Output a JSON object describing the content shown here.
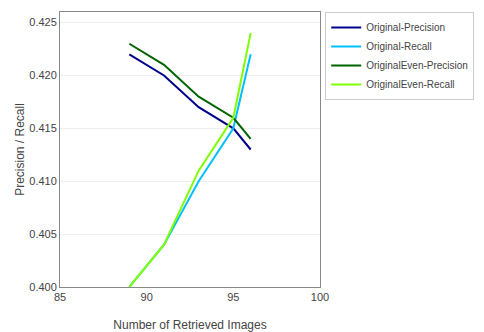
{
  "chart_data": {
    "type": "line",
    "xlabel": "Number of Retrieved Images",
    "ylabel": "Precision / Recall",
    "series": [
      {
        "name": "Original-Precision",
        "color": "#00008B",
        "x": [
          89,
          91,
          93,
          95,
          96
        ],
        "values": [
          0.422,
          0.42,
          0.417,
          0.415,
          0.413
        ]
      },
      {
        "name": "Original-Recall",
        "color": "#00BFFF",
        "x": [
          89,
          91,
          93,
          95,
          96
        ],
        "values": [
          0.4,
          0.404,
          0.41,
          0.415,
          0.422
        ]
      },
      {
        "name": "OriginalEven-Precision",
        "color": "#006400",
        "x": [
          89,
          91,
          93,
          95,
          96
        ],
        "values": [
          0.423,
          0.421,
          0.418,
          0.416,
          0.414
        ]
      },
      {
        "name": "OriginalEven-Recall",
        "color": "#7FFF00",
        "x": [
          89,
          91,
          93,
          95,
          96
        ],
        "values": [
          0.4,
          0.404,
          0.411,
          0.416,
          0.424
        ]
      }
    ],
    "xlim": [
      85,
      100
    ],
    "xticks": [
      85,
      90,
      95,
      100
    ],
    "ylim": [
      0.4,
      0.426
    ],
    "yticks": [
      {
        "value": 0.4,
        "label": "0.400"
      },
      0.405,
      {
        "value": 0.41,
        "label": "0.410"
      },
      0.415,
      {
        "value": 0.42,
        "label": "0.420"
      },
      0.425
    ],
    "grid": "y",
    "legend": "right"
  }
}
